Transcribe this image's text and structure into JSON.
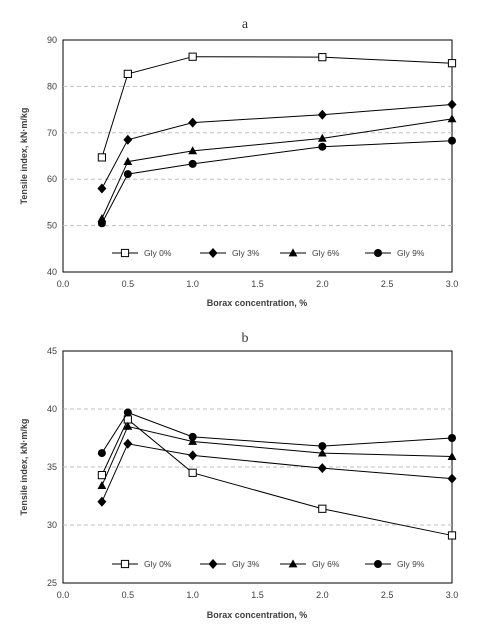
{
  "chart_data": [
    {
      "type": "line",
      "title": "a",
      "xlabel": "Borax concentration, %",
      "ylabel": "Tensile index, kN·m/kg",
      "xlim": [
        0,
        3
      ],
      "ylim": [
        40,
        90
      ],
      "xticks": [
        "0.0",
        "0.5",
        "1.0",
        "1.5",
        "2.0",
        "2.5",
        "3.0"
      ],
      "yticks": [
        "40",
        "50",
        "60",
        "70",
        "80",
        "90"
      ],
      "grid": "horizontal-dashed",
      "legend_position": "bottom",
      "series": [
        {
          "name": "Gly 0%",
          "marker": "open-square",
          "x": [
            0.3,
            0.5,
            1.0,
            2.0,
            3.0
          ],
          "y": [
            64.7,
            82.7,
            86.4,
            86.3,
            85.0
          ]
        },
        {
          "name": "Gly 3%",
          "marker": "diamond",
          "x": [
            0.3,
            0.5,
            1.0,
            2.0,
            3.0
          ],
          "y": [
            58.0,
            68.5,
            72.2,
            73.9,
            76.1
          ]
        },
        {
          "name": "Gly 6%",
          "marker": "triangle",
          "x": [
            0.3,
            0.5,
            1.0,
            2.0,
            3.0
          ],
          "y": [
            51.5,
            63.8,
            66.1,
            68.8,
            73.0
          ]
        },
        {
          "name": "Gly 9%",
          "marker": "circle",
          "x": [
            0.3,
            0.5,
            1.0,
            2.0,
            3.0
          ],
          "y": [
            50.5,
            61.1,
            63.3,
            67.0,
            68.3
          ]
        }
      ]
    },
    {
      "type": "line",
      "title": "b",
      "xlabel": "Borax concentration, %",
      "ylabel": "Tensile index, kN·m/kg",
      "xlim": [
        0,
        3
      ],
      "ylim": [
        25,
        45
      ],
      "xticks": [
        "0.0",
        "0.5",
        "1.0",
        "1.5",
        "2.0",
        "2.5",
        "3.0"
      ],
      "yticks": [
        "25",
        "30",
        "35",
        "40",
        "45"
      ],
      "grid": "horizontal-dashed",
      "legend_position": "bottom",
      "series": [
        {
          "name": "Gly 0%",
          "marker": "open-square",
          "x": [
            0.3,
            0.5,
            1.0,
            2.0,
            3.0
          ],
          "y": [
            34.3,
            39.1,
            34.5,
            31.4,
            29.1
          ]
        },
        {
          "name": "Gly 3%",
          "marker": "diamond",
          "x": [
            0.3,
            0.5,
            1.0,
            2.0,
            3.0
          ],
          "y": [
            32.0,
            37.0,
            36.0,
            34.9,
            34.0
          ]
        },
        {
          "name": "Gly 6%",
          "marker": "triangle",
          "x": [
            0.3,
            0.5,
            1.0,
            2.0,
            3.0
          ],
          "y": [
            33.4,
            38.5,
            37.2,
            36.2,
            35.9
          ]
        },
        {
          "name": "Gly 9%",
          "marker": "circle",
          "x": [
            0.3,
            0.5,
            1.0,
            2.0,
            3.0
          ],
          "y": [
            36.2,
            39.7,
            37.6,
            36.8,
            37.5
          ]
        }
      ]
    }
  ]
}
